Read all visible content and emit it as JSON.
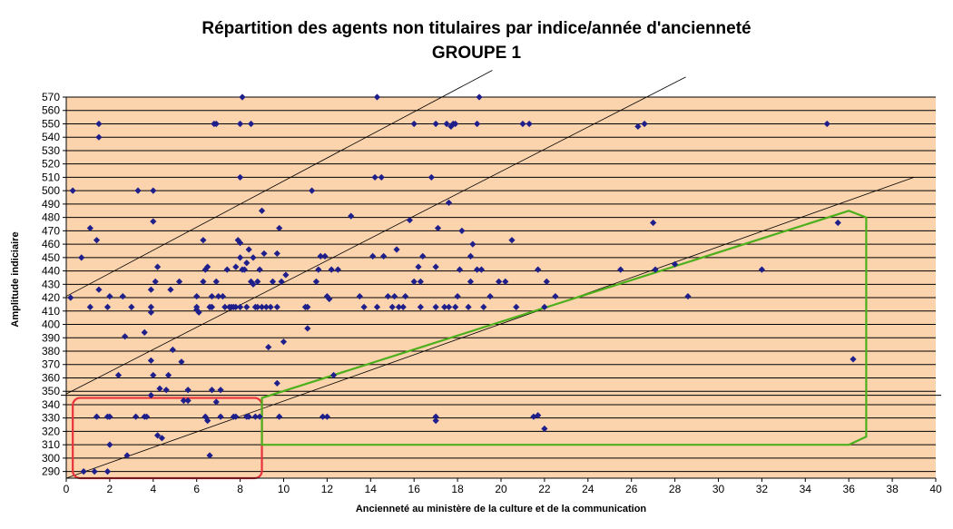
{
  "chart_data": {
    "type": "scatter",
    "title": "Répartition des agents non titulaires par indice/année d'ancienneté",
    "subtitle": "GROUPE 1",
    "xlabel": "Ancienneté au ministère de la culture et de la communication",
    "ylabel": "Amplitude indiciaire",
    "xlim": [
      0,
      40
    ],
    "ylim": [
      285,
      570
    ],
    "xticks": [
      0,
      2,
      4,
      6,
      8,
      10,
      12,
      14,
      16,
      18,
      20,
      22,
      24,
      26,
      28,
      30,
      32,
      34,
      36,
      38,
      40
    ],
    "yticks": [
      290,
      300,
      310,
      320,
      330,
      340,
      350,
      360,
      370,
      380,
      390,
      400,
      410,
      420,
      430,
      440,
      450,
      460,
      470,
      480,
      490,
      500,
      510,
      520,
      530,
      540,
      550,
      560,
      570
    ],
    "grid": "horizontal",
    "legend": "none",
    "colors": {
      "plot_bg": "#fbd3ad",
      "grid": "#000000",
      "marker": "#1f1f8c",
      "red_box": "#e8323c",
      "green_box": "#4caf1c",
      "trend": "#000000"
    },
    "series": [
      {
        "points": [
          [
            0.2,
            420
          ],
          [
            0.3,
            500
          ],
          [
            0.7,
            450
          ],
          [
            1.1,
            472
          ],
          [
            1.1,
            413
          ],
          [
            1.4,
            463
          ],
          [
            1.5,
            550
          ],
          [
            1.5,
            540
          ],
          [
            1.5,
            426
          ],
          [
            1.9,
            413
          ],
          [
            2.0,
            421
          ],
          [
            2.4,
            362
          ],
          [
            2.6,
            421
          ],
          [
            2.7,
            391
          ],
          [
            3.0,
            413
          ],
          [
            3.3,
            500
          ],
          [
            3.6,
            394
          ],
          [
            4.0,
            500
          ],
          [
            4.0,
            477
          ],
          [
            3.9,
            426
          ],
          [
            3.9,
            413
          ],
          [
            3.9,
            409
          ],
          [
            3.9,
            373
          ],
          [
            4.0,
            362
          ],
          [
            4.2,
            443
          ],
          [
            4.1,
            432
          ],
          [
            4.3,
            352
          ],
          [
            4.7,
            362
          ],
          [
            4.8,
            426
          ],
          [
            4.9,
            381
          ],
          [
            5.2,
            432
          ],
          [
            5.3,
            372
          ],
          [
            5.6,
            351
          ],
          [
            4.6,
            351
          ],
          [
            3.9,
            347
          ],
          [
            6.0,
            421
          ],
          [
            6.0,
            413
          ],
          [
            6.0,
            411
          ],
          [
            6.1,
            409
          ],
          [
            6.3,
            463
          ],
          [
            6.3,
            432
          ],
          [
            6.4,
            441
          ],
          [
            6.5,
            443
          ],
          [
            6.6,
            413
          ],
          [
            6.7,
            413
          ],
          [
            6.8,
            550
          ],
          [
            6.9,
            550
          ],
          [
            6.7,
            421
          ],
          [
            6.9,
            432
          ],
          [
            7.0,
            421
          ],
          [
            7.2,
            421
          ],
          [
            7.3,
            413
          ],
          [
            7.5,
            413
          ],
          [
            7.4,
            441
          ],
          [
            7.6,
            413
          ],
          [
            7.7,
            413
          ],
          [
            7.8,
            413
          ],
          [
            7.8,
            443
          ],
          [
            7.9,
            463
          ],
          [
            8.0,
            461
          ],
          [
            8.0,
            450
          ],
          [
            8.1,
            570
          ],
          [
            8.0,
            550
          ],
          [
            8.0,
            510
          ],
          [
            8.1,
            441
          ],
          [
            8.2,
            441
          ],
          [
            8.3,
            413
          ],
          [
            8.3,
            446
          ],
          [
            8.4,
            456
          ],
          [
            8.5,
            432
          ],
          [
            8.6,
            430
          ],
          [
            8.6,
            450
          ],
          [
            8.7,
            413
          ],
          [
            8.8,
            413
          ],
          [
            8.8,
            432
          ],
          [
            8.9,
            441
          ],
          [
            9.0,
            413
          ],
          [
            9.0,
            485
          ],
          [
            9.1,
            453
          ],
          [
            9.2,
            413
          ],
          [
            9.3,
            383
          ],
          [
            9.4,
            413
          ],
          [
            9.5,
            432
          ],
          [
            9.7,
            453
          ],
          [
            9.7,
            413
          ],
          [
            9.8,
            472
          ],
          [
            9.9,
            432
          ],
          [
            10.1,
            437
          ],
          [
            10.0,
            387
          ],
          [
            8.5,
            550
          ],
          [
            8.0,
            413
          ],
          [
            7.1,
            351
          ],
          [
            6.7,
            351
          ],
          [
            11.0,
            413
          ],
          [
            11.1,
            413
          ],
          [
            11.1,
            397
          ],
          [
            11.3,
            500
          ],
          [
            11.5,
            432
          ],
          [
            11.6,
            441
          ],
          [
            11.7,
            451
          ],
          [
            11.9,
            451
          ],
          [
            12.0,
            421
          ],
          [
            12.1,
            419
          ],
          [
            12.2,
            441
          ],
          [
            12.5,
            441
          ],
          [
            13.1,
            481
          ],
          [
            13.5,
            421
          ],
          [
            13.7,
            413
          ],
          [
            14.1,
            451
          ],
          [
            14.3,
            570
          ],
          [
            14.2,
            510
          ],
          [
            14.5,
            510
          ],
          [
            14.3,
            413
          ],
          [
            14.6,
            451
          ],
          [
            14.8,
            421
          ],
          [
            15.0,
            413
          ],
          [
            15.1,
            421
          ],
          [
            15.2,
            456
          ],
          [
            15.3,
            413
          ],
          [
            15.5,
            413
          ],
          [
            15.6,
            421
          ],
          [
            15.8,
            478
          ],
          [
            16.0,
            432
          ],
          [
            16.0,
            550
          ],
          [
            16.2,
            443
          ],
          [
            16.3,
            432
          ],
          [
            16.3,
            413
          ],
          [
            16.4,
            451
          ],
          [
            16.8,
            510
          ],
          [
            17.0,
            413
          ],
          [
            17.0,
            443
          ],
          [
            17.1,
            472
          ],
          [
            17.0,
            550
          ],
          [
            17.4,
            413
          ],
          [
            17.5,
            550
          ],
          [
            17.6,
            413
          ],
          [
            17.6,
            491
          ],
          [
            17.7,
            548
          ],
          [
            17.8,
            550
          ],
          [
            17.9,
            413
          ],
          [
            17.9,
            550
          ],
          [
            18.0,
            421
          ],
          [
            18.1,
            441
          ],
          [
            18.2,
            470
          ],
          [
            18.5,
            413
          ],
          [
            18.6,
            451
          ],
          [
            18.6,
            432
          ],
          [
            18.7,
            460
          ],
          [
            18.9,
            550
          ],
          [
            18.9,
            441
          ],
          [
            19.0,
            570
          ],
          [
            19.1,
            441
          ],
          [
            19.2,
            413
          ],
          [
            19.5,
            421
          ],
          [
            19.9,
            432
          ],
          [
            20.2,
            432
          ],
          [
            20.5,
            463
          ],
          [
            20.7,
            413
          ],
          [
            21.0,
            550
          ],
          [
            21.3,
            550
          ],
          [
            21.7,
            441
          ],
          [
            22.0,
            413
          ],
          [
            22.1,
            432
          ],
          [
            22.5,
            421
          ]
        ]
      },
      {
        "points": [
          [
            25.5,
            441
          ],
          [
            26.3,
            548
          ],
          [
            26.6,
            550
          ],
          [
            27.0,
            476
          ],
          [
            27.1,
            441
          ],
          [
            28.0,
            445
          ],
          [
            28.6,
            421
          ],
          [
            32.0,
            441
          ],
          [
            35.0,
            550
          ],
          [
            35.5,
            476
          ],
          [
            36.2,
            374
          ]
        ]
      },
      {
        "points": [
          [
            0.8,
            290
          ],
          [
            1.3,
            290
          ],
          [
            1.9,
            290
          ],
          [
            2.0,
            310
          ],
          [
            1.4,
            331
          ],
          [
            1.9,
            331
          ],
          [
            2.0,
            331
          ],
          [
            2.8,
            302
          ],
          [
            3.2,
            331
          ],
          [
            3.6,
            331
          ],
          [
            3.7,
            331
          ],
          [
            4.2,
            317
          ],
          [
            4.4,
            315
          ],
          [
            6.4,
            331
          ],
          [
            6.5,
            328
          ],
          [
            6.6,
            302
          ],
          [
            6.9,
            342
          ],
          [
            7.1,
            331
          ],
          [
            7.7,
            331
          ],
          [
            7.8,
            331
          ],
          [
            8.3,
            331
          ],
          [
            8.4,
            331
          ],
          [
            8.7,
            331
          ],
          [
            8.9,
            331
          ],
          [
            9.8,
            331
          ],
          [
            5.4,
            343
          ],
          [
            5.6,
            343
          ],
          [
            9.7,
            356
          ],
          [
            11.8,
            331
          ],
          [
            12.0,
            331
          ],
          [
            12.3,
            362
          ],
          [
            17.0,
            331
          ],
          [
            17.0,
            328
          ],
          [
            21.5,
            331
          ],
          [
            21.7,
            332
          ],
          [
            22.0,
            322
          ]
        ]
      }
    ],
    "trend_lines": [
      {
        "x": [
          0,
          19.6
        ],
        "y": [
          421,
          590
        ]
      },
      {
        "x": [
          0,
          28.5
        ],
        "y": [
          348,
          585
        ]
      },
      {
        "x": [
          0,
          39
        ],
        "y": [
          285,
          510
        ]
      }
    ],
    "annotations": [
      {
        "shape": "rounded-rect",
        "color": "red",
        "x": [
          0.3,
          9.0
        ],
        "y": [
          285,
          345
        ]
      },
      {
        "shape": "polygon",
        "color": "green",
        "points": [
          [
            9.0,
            345
          ],
          [
            36.0,
            485
          ],
          [
            36.8,
            480
          ],
          [
            36.8,
            316
          ],
          [
            36.0,
            310
          ],
          [
            9.0,
            310
          ]
        ]
      }
    ],
    "reference_line": {
      "y": 347
    }
  }
}
